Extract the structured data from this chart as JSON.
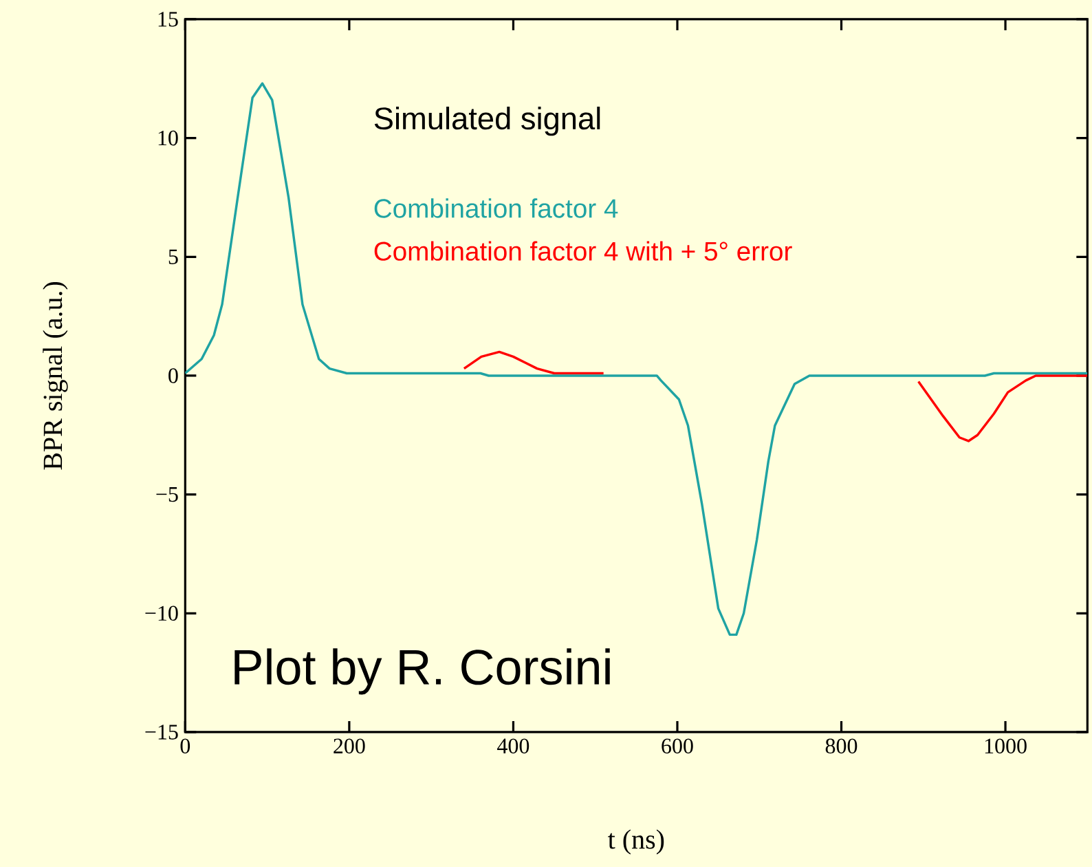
{
  "chart_data": {
    "type": "line",
    "xlabel": "t (ns)",
    "ylabel": "BPR signal (a.u.)",
    "xlim": [
      0,
      1100
    ],
    "ylim": [
      -15,
      15
    ],
    "xticks": [
      0,
      200,
      400,
      600,
      800,
      1000
    ],
    "yticks": [
      {
        "value": -15,
        "label": "−15"
      },
      {
        "value": -10,
        "label": "−10"
      },
      {
        "value": -5,
        "label": "−5"
      },
      0,
      5,
      10,
      15
    ],
    "grid": false,
    "marker": "none",
    "line_style": "solid",
    "annotations": [
      "Simulated signal",
      "Plot by R. Corsini"
    ],
    "series": [
      {
        "name": "Combination factor 4 with + 5° error",
        "color": "#ff0000",
        "x": [
          340,
          361,
          383,
          400,
          429,
          450,
          510,
          700,
          894,
          924,
          944,
          955,
          966,
          986,
          1003,
          1025,
          1037,
          1100
        ],
        "values": [
          0.3,
          0.8,
          1.0,
          0.8,
          0.3,
          0.1,
          0.1,
          null,
          -0.25,
          -1.7,
          -2.6,
          -2.75,
          -2.5,
          -1.6,
          -0.7,
          -0.2,
          0,
          0
        ]
      },
      {
        "name": "Combination factor 4",
        "color": "#1fa3a3",
        "x": [
          0,
          20,
          35,
          45,
          64,
          82,
          94,
          106,
          126,
          143,
          163,
          176,
          197,
          360,
          370,
          575,
          580,
          602,
          613,
          630,
          650,
          664,
          672,
          681,
          697,
          711,
          719,
          743,
          761,
          975,
          986,
          1100
        ],
        "values": [
          0.1,
          0.7,
          1.7,
          3.0,
          7.5,
          11.7,
          12.3,
          11.6,
          7.5,
          3.0,
          0.7,
          0.3,
          0.1,
          0.1,
          0,
          0,
          -0.2,
          -1.0,
          -2.1,
          -5.4,
          -9.8,
          -10.9,
          -10.9,
          -10.0,
          -6.9,
          -3.6,
          -2.1,
          -0.35,
          0,
          0,
          0.1,
          0.1
        ]
      }
    ]
  }
}
